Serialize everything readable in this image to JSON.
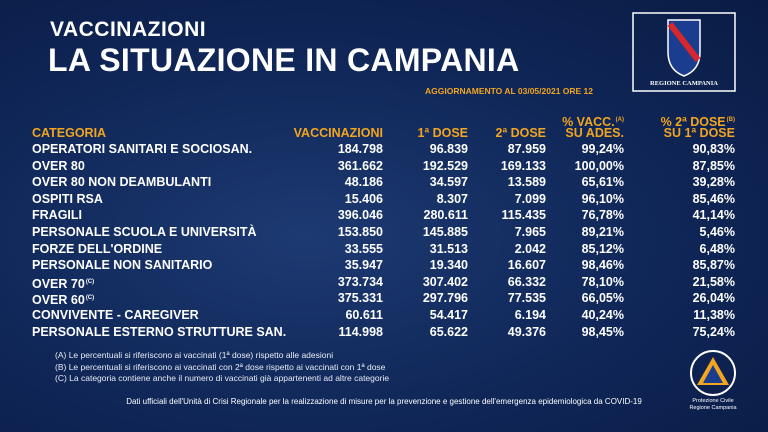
{
  "header": {
    "kicker": "VACCINAZIONI",
    "title": "LA SITUAZIONE IN CAMPANIA",
    "update": "AGGIORNAMENTO AL 03/05/2021 ORE 12",
    "logo": "REGIONE CAMPANIA"
  },
  "table": {
    "columns": [
      {
        "lines": [
          "CATEGORIA"
        ]
      },
      {
        "lines": [
          "VACCINAZIONI"
        ]
      },
      {
        "lines": [
          "1ª DOSE"
        ]
      },
      {
        "lines": [
          "2ª DOSE"
        ]
      },
      {
        "lines": [
          "% VACC.",
          "SU ADES."
        ],
        "note": "(A)"
      },
      {
        "lines": [
          "% 2ª DOSE",
          "SU 1ª DOSE"
        ],
        "note": "(B)"
      }
    ],
    "rows": [
      {
        "category": "OPERATORI SANITARI E SOCIOSAN.",
        "cells": [
          "184.798",
          "96.839",
          "87.959",
          "99,24%",
          "90,83%"
        ]
      },
      {
        "category": "OVER 80",
        "cells": [
          "361.662",
          "192.529",
          "169.133",
          "100,00%",
          "87,85%"
        ]
      },
      {
        "category": "OVER 80 NON DEAMBULANTI",
        "cells": [
          "48.186",
          "34.597",
          "13.589",
          "65,61%",
          "39,28%"
        ]
      },
      {
        "category": "OSPITI RSA",
        "cells": [
          "15.406",
          "8.307",
          "7.099",
          "96,10%",
          "85,46%"
        ]
      },
      {
        "category": "FRAGILI",
        "cells": [
          "396.046",
          "280.611",
          "115.435",
          "76,78%",
          "41,14%"
        ]
      },
      {
        "category": "PERSONALE SCUOLA E UNIVERSITÀ",
        "cells": [
          "153.850",
          "145.885",
          "7.965",
          "89,21%",
          "5,46%"
        ]
      },
      {
        "category": "FORZE DELL'ORDINE",
        "cells": [
          "33.555",
          "31.513",
          "2.042",
          "85,12%",
          "6,48%"
        ]
      },
      {
        "category": "PERSONALE NON SANITARIO",
        "cells": [
          "35.947",
          "19.340",
          "16.607",
          "98,46%",
          "85,87%"
        ]
      },
      {
        "category": "OVER 70",
        "note": "(C)",
        "cells": [
          "373.734",
          "307.402",
          "66.332",
          "78,10%",
          "21,58%"
        ]
      },
      {
        "category": "OVER 60",
        "note": "(C)",
        "cells": [
          "375.331",
          "297.796",
          "77.535",
          "66,05%",
          "26,04%"
        ]
      },
      {
        "category": "CONVIVENTE - CAREGIVER",
        "cells": [
          "60.611",
          "54.417",
          "6.194",
          "40,24%",
          "11,38%"
        ]
      },
      {
        "category": "PERSONALE ESTERNO STRUTTURE SAN.",
        "cells": [
          "114.998",
          "65.622",
          "49.376",
          "98,45%",
          "75,24%"
        ]
      }
    ]
  },
  "footnotes": [
    "(A) Le percentuali si riferiscono ai vaccinati (1ª dose) rispetto alle adesioni",
    "(B) Le percentuali si riferiscono ai vaccinati con 2ª dose rispetto ai vaccinati con 1ª dose",
    "(C) La categoria contiene anche il numero di vaccinati già appartenenti ad altre categorie"
  ],
  "source": "Dati ufficiali dell'Unità di Crisi Regionale per la realizzazione di misure per la prevenzione e gestione dell'emergenza epidemiologica da COVID-19",
  "civil_protection": [
    "Protezione Civile",
    "Regione Campania"
  ]
}
